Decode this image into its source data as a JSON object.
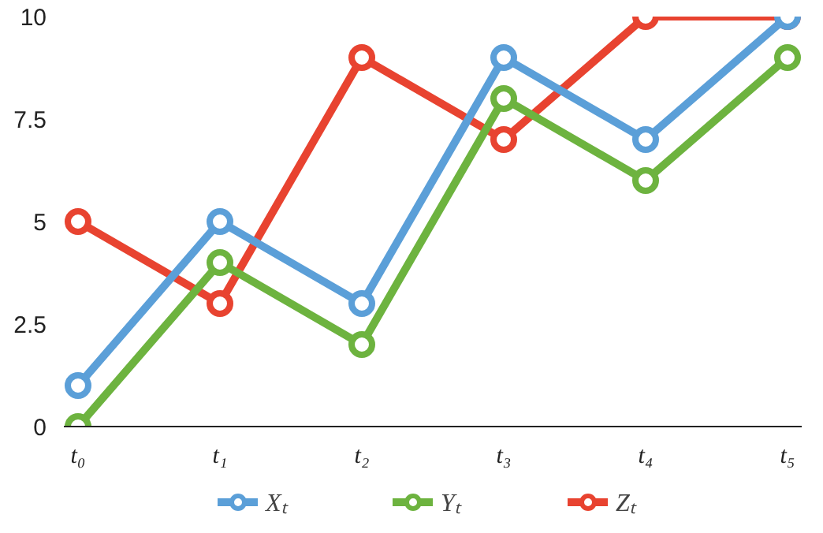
{
  "chart_data": {
    "type": "line",
    "categories": [
      "t₀",
      "t₁",
      "t₂",
      "t₃",
      "t₄",
      "t₅"
    ],
    "series": [
      {
        "name": "Xₜ",
        "color": "#5b9fd8",
        "values": [
          1,
          5,
          3,
          9,
          7,
          10
        ]
      },
      {
        "name": "Yₜ",
        "color": "#6db33f",
        "values": [
          0,
          4,
          2,
          8,
          6,
          9
        ]
      },
      {
        "name": "Zₜ",
        "color": "#e84330",
        "values": [
          5,
          3,
          9,
          7,
          10,
          10
        ]
      }
    ],
    "ylim": [
      0,
      10
    ],
    "yticks": [
      0,
      2.5,
      5,
      7.5,
      10
    ],
    "grid": false,
    "legend": "bottom",
    "marker": "circle",
    "line_style": "solid"
  }
}
